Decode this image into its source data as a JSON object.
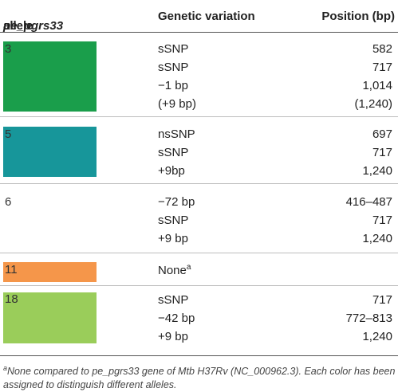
{
  "header": {
    "allele_italic": "pe_pgrs33",
    "allele_rest": " allele",
    "variation": "Genetic variation",
    "position": "Position (bp)"
  },
  "groups": [
    {
      "allele": "3",
      "color": "#1a9e4b",
      "rows": [
        {
          "variation": "sSNP",
          "position": "582"
        },
        {
          "variation": "sSNP",
          "position": "717"
        },
        {
          "variation": "−1 bp",
          "position": "1,014"
        },
        {
          "variation": "(+9 bp)",
          "position": "(1,240)"
        }
      ]
    },
    {
      "allele": "5",
      "color": "#17969a",
      "rows": [
        {
          "variation": "nsSNP",
          "position": "697"
        },
        {
          "variation": "sSNP",
          "position": "717"
        },
        {
          "variation": "+9bp",
          "position": "1,240"
        }
      ]
    },
    {
      "allele": "6",
      "color": "",
      "rows": [
        {
          "variation": "−72 bp",
          "position": "416–487"
        },
        {
          "variation": "sSNP",
          "position": "717"
        },
        {
          "variation": "+9 bp",
          "position": "1,240"
        }
      ]
    },
    {
      "allele": "11",
      "color": "#f5964a",
      "rows": [
        {
          "variation": "None",
          "variation_sup": "a",
          "position": ""
        }
      ]
    },
    {
      "allele": "18",
      "color": "#9acd5a",
      "rows": [
        {
          "variation": "sSNP",
          "position": "717"
        },
        {
          "variation": "−42 bp",
          "position": "772–813"
        },
        {
          "variation": "+9 bp",
          "position": "1,240"
        }
      ]
    }
  ],
  "footnote": {
    "marker": "a",
    "text": "None compared to pe_pgrs33 gene of Mtb H37Rv (NC_000962.3). Each color has been assigned to distinguish different alleles."
  }
}
